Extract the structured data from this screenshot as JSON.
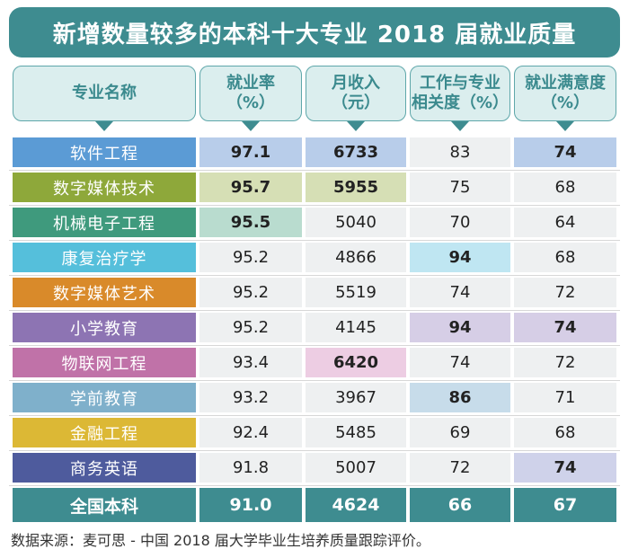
{
  "title": "新增数量较多的本科十大专业 2018 届就业质量",
  "headers": {
    "major": "专业名称",
    "employment": [
      "就业率",
      "（%）"
    ],
    "income": [
      "月收入",
      "（元）"
    ],
    "relevance": [
      "工作与专业",
      "相关度（%）"
    ],
    "satisfaction": [
      "就业满意度",
      "（%）"
    ]
  },
  "colors": {
    "teal": "#3e8c90",
    "header_bg": "#dbeeee",
    "cell_bg": "#eef0f1"
  },
  "rows": [
    {
      "major": "软件工程",
      "employment": "97.1",
      "income": "6733",
      "relevance": "83",
      "satisfaction": "74",
      "color": "#5b9bd5"
    },
    {
      "major": "数字媒体技术",
      "employment": "95.7",
      "income": "5955",
      "relevance": "75",
      "satisfaction": "68",
      "color": "#8ea83a"
    },
    {
      "major": "机械电子工程",
      "employment": "95.5",
      "income": "5040",
      "relevance": "70",
      "satisfaction": "64",
      "color": "#3f9a7d"
    },
    {
      "major": "康复治疗学",
      "employment": "95.2",
      "income": "4866",
      "relevance": "94",
      "satisfaction": "68",
      "color": "#55bfdb"
    },
    {
      "major": "数字媒体艺术",
      "employment": "95.2",
      "income": "5519",
      "relevance": "74",
      "satisfaction": "72",
      "color": "#d98a2a"
    },
    {
      "major": "小学教育",
      "employment": "95.2",
      "income": "4145",
      "relevance": "94",
      "satisfaction": "74",
      "color": "#8d74b3"
    },
    {
      "major": "物联网工程",
      "employment": "93.4",
      "income": "6420",
      "relevance": "74",
      "satisfaction": "72",
      "color": "#c072a8"
    },
    {
      "major": "学前教育",
      "employment": "93.2",
      "income": "3967",
      "relevance": "86",
      "satisfaction": "71",
      "color": "#7fb0cb"
    },
    {
      "major": "金融工程",
      "employment": "92.4",
      "income": "5485",
      "relevance": "69",
      "satisfaction": "68",
      "color": "#dcb835"
    },
    {
      "major": "商务英语",
      "employment": "91.8",
      "income": "5007",
      "relevance": "72",
      "satisfaction": "74",
      "color": "#4e5b9d"
    }
  ],
  "highlights": {
    "employment": [
      {
        "row": 0,
        "color": "#b8cdea"
      },
      {
        "row": 1,
        "color": "#d6dfb5"
      },
      {
        "row": 2,
        "color": "#b9dccf"
      }
    ],
    "income": [
      {
        "row": 0,
        "color": "#b8cdea"
      },
      {
        "row": 1,
        "color": "#d6dfb5"
      },
      {
        "row": 6,
        "color": "#edcde3"
      }
    ],
    "relevance": [
      {
        "row": 3,
        "color": "#bfe6f2"
      },
      {
        "row": 5,
        "color": "#d6cee6"
      },
      {
        "row": 7,
        "color": "#c7dcea"
      }
    ],
    "satisfaction": [
      {
        "row": 0,
        "color": "#b8cdea"
      },
      {
        "row": 5,
        "color": "#d6cee6"
      },
      {
        "row": 9,
        "color": "#cfd2ea"
      }
    ]
  },
  "footer": {
    "major": "全国本科",
    "employment": "91.0",
    "income": "4624",
    "relevance": "66",
    "satisfaction": "67"
  },
  "source": "数据来源：麦可思 - 中国 2018 届大学毕业生培养质量跟踪评价。",
  "chart_data": {
    "type": "table",
    "title": "新增数量较多的本科十大专业 2018 届就业质量",
    "columns": [
      "专业名称",
      "就业率（%）",
      "月收入（元）",
      "工作与专业相关度（%）",
      "就业满意度（%）"
    ],
    "categories": [
      "软件工程",
      "数字媒体技术",
      "机械电子工程",
      "康复治疗学",
      "数字媒体艺术",
      "小学教育",
      "物联网工程",
      "学前教育",
      "金融工程",
      "商务英语",
      "全国本科"
    ],
    "series": [
      {
        "name": "就业率（%）",
        "values": [
          97.1,
          95.7,
          95.5,
          95.2,
          95.2,
          95.2,
          93.4,
          93.2,
          92.4,
          91.8,
          91.0
        ]
      },
      {
        "name": "月收入（元）",
        "values": [
          6733,
          5955,
          5040,
          4866,
          5519,
          4145,
          6420,
          3967,
          5485,
          5007,
          4624
        ]
      },
      {
        "name": "工作与专业相关度（%）",
        "values": [
          83,
          75,
          70,
          94,
          74,
          94,
          74,
          86,
          69,
          72,
          66
        ]
      },
      {
        "name": "就业满意度（%）",
        "values": [
          74,
          68,
          64,
          68,
          72,
          74,
          72,
          71,
          68,
          74,
          67
        ]
      }
    ]
  }
}
